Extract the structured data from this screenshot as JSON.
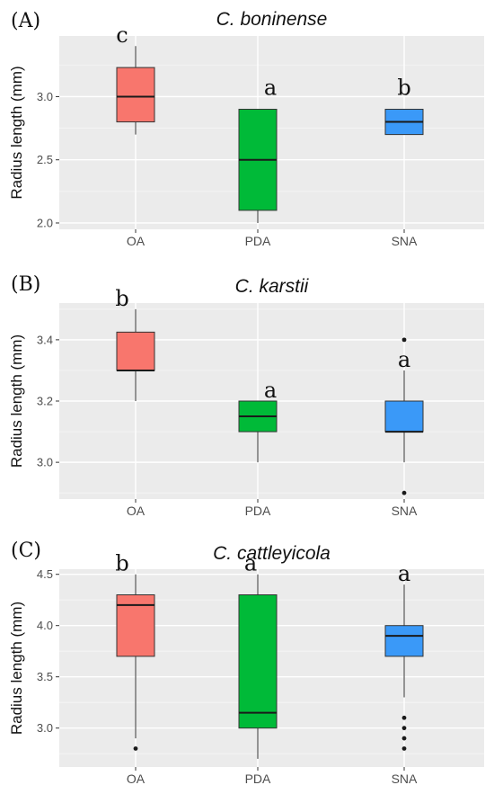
{
  "chart_data": [
    {
      "type": "box",
      "panel": "(A)",
      "title": "C. boninense",
      "ylabel": "Radius length (mm)",
      "ylim": [
        1.95,
        3.48
      ],
      "yticks": [
        2.0,
        2.5,
        3.0
      ],
      "ytick_labels": [
        "2.0",
        "2.5",
        "3.0"
      ],
      "categories": [
        "OA",
        "PDA",
        "SNA"
      ],
      "colors": [
        "#F8766D",
        "#00BA38",
        "#3A99F8"
      ],
      "boxes": [
        {
          "category": "OA",
          "whisker_low": 2.7,
          "q1": 2.8,
          "median": 3.0,
          "q3": 3.23,
          "whisker_high": 3.4,
          "outliers": [],
          "letter": "c"
        },
        {
          "category": "PDA",
          "whisker_low": 2.0,
          "q1": 2.1,
          "median": 2.5,
          "q3": 2.9,
          "whisker_high": 2.9,
          "outliers": [],
          "letter": "a"
        },
        {
          "category": "SNA",
          "whisker_low": 2.7,
          "q1": 2.7,
          "median": 2.8,
          "q3": 2.9,
          "whisker_high": 2.9,
          "outliers": [],
          "letter": "b"
        }
      ],
      "grid": true
    },
    {
      "type": "box",
      "panel": "(B)",
      "title": "C. karstii",
      "ylabel": "Radius length (mm)",
      "ylim": [
        2.88,
        3.52
      ],
      "yticks": [
        3.0,
        3.2,
        3.4
      ],
      "ytick_labels": [
        "3.0",
        "3.2",
        "3.4"
      ],
      "categories": [
        "OA",
        "PDA",
        "SNA"
      ],
      "colors": [
        "#F8766D",
        "#00BA38",
        "#3A99F8"
      ],
      "boxes": [
        {
          "category": "OA",
          "whisker_low": 3.2,
          "q1": 3.3,
          "median": 3.3,
          "q3": 3.425,
          "whisker_high": 3.5,
          "outliers": [],
          "letter": "b"
        },
        {
          "category": "PDA",
          "whisker_low": 3.0,
          "q1": 3.1,
          "median": 3.15,
          "q3": 3.2,
          "whisker_high": 3.2,
          "outliers": [],
          "letter": "a"
        },
        {
          "category": "SNA",
          "whisker_low": 3.0,
          "q1": 3.1,
          "median": 3.1,
          "q3": 3.2,
          "whisker_high": 3.3,
          "outliers": [
            3.4,
            2.9
          ],
          "letter": "a"
        }
      ],
      "grid": true
    },
    {
      "type": "box",
      "panel": "(C)",
      "title": "C. cattleyicola",
      "ylabel": "Radius length (mm)",
      "ylim": [
        2.62,
        4.55
      ],
      "yticks": [
        3.0,
        3.5,
        4.0,
        4.5
      ],
      "ytick_labels": [
        "3.0",
        "3.5",
        "4.0",
        "4.5"
      ],
      "categories": [
        "OA",
        "PDA",
        "SNA"
      ],
      "colors": [
        "#F8766D",
        "#00BA38",
        "#3A99F8"
      ],
      "boxes": [
        {
          "category": "OA",
          "whisker_low": 2.9,
          "q1": 3.7,
          "median": 4.2,
          "q3": 4.3,
          "whisker_high": 4.5,
          "outliers": [
            2.8
          ],
          "letter": "b"
        },
        {
          "category": "PDA",
          "whisker_low": 2.7,
          "q1": 3.0,
          "median": 3.15,
          "q3": 4.3,
          "whisker_high": 4.5,
          "outliers": [],
          "letter": "a"
        },
        {
          "category": "SNA",
          "whisker_low": 3.3,
          "q1": 3.7,
          "median": 3.9,
          "q3": 4.0,
          "whisker_high": 4.4,
          "outliers": [
            3.1,
            3.0,
            2.9,
            2.8
          ],
          "letter": "a"
        }
      ],
      "grid": true
    }
  ],
  "style": {
    "panel_bg": "#EBEBEB",
    "grid_major": "#FFFFFF",
    "grid_minor": "#F5F5F5",
    "box_stroke": "#333333",
    "outlier_color": "#1a1a1a"
  }
}
